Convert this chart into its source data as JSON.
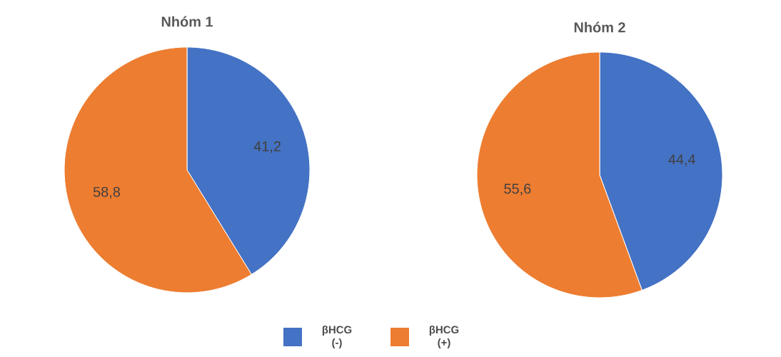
{
  "chart_data": [
    {
      "type": "pie",
      "title": "Nhóm 1",
      "categories": [
        "βHCG (-)",
        "βHCG (+)"
      ],
      "values": [
        41.2,
        58.8
      ],
      "value_labels": [
        "41,2",
        "58,8"
      ],
      "colors": [
        "#4472c4",
        "#ed7d31"
      ],
      "legend": "bottom"
    },
    {
      "type": "pie",
      "title": "Nhóm 2",
      "categories": [
        null,
        null
      ],
      "values": [
        44.4,
        55.6
      ],
      "value_labels": [
        "44,4",
        "55,6"
      ],
      "colors": [
        "#4472c4",
        "#ed7d31"
      ]
    }
  ]
}
